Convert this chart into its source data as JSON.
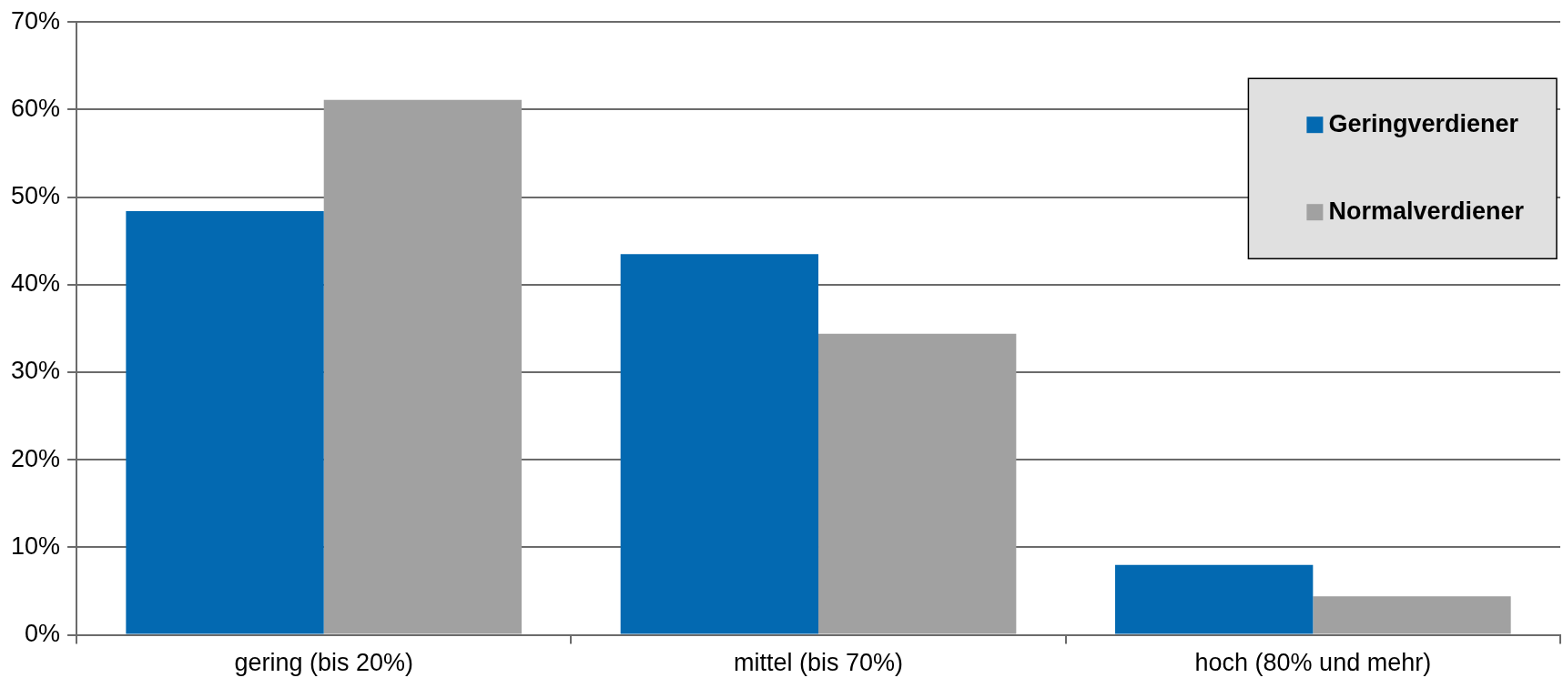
{
  "chart_data": {
    "type": "bar",
    "categories": [
      "gering (bis 20%)",
      "mittel (bis 70%)",
      "hoch (80% und mehr)"
    ],
    "series": [
      {
        "name": "Geringverdiener",
        "color": "#0369b1",
        "values": [
          48.4,
          43.5,
          8.0
        ]
      },
      {
        "name": "Normalverdiener",
        "color": "#a1a1a1",
        "values": [
          61.1,
          34.4,
          4.4
        ]
      }
    ],
    "ylim": [
      0,
      70
    ],
    "yticks": [
      {
        "value": 0,
        "label": "0%"
      },
      {
        "value": 10,
        "label": "10%"
      },
      {
        "value": 20,
        "label": "20%"
      },
      {
        "value": 30,
        "label": "30%"
      },
      {
        "value": 40,
        "label": "40%"
      },
      {
        "value": 50,
        "label": "50%"
      },
      {
        "value": 60,
        "label": "60%"
      },
      {
        "value": 70,
        "label": "70%"
      }
    ],
    "grid": "y",
    "legend": "top right"
  }
}
